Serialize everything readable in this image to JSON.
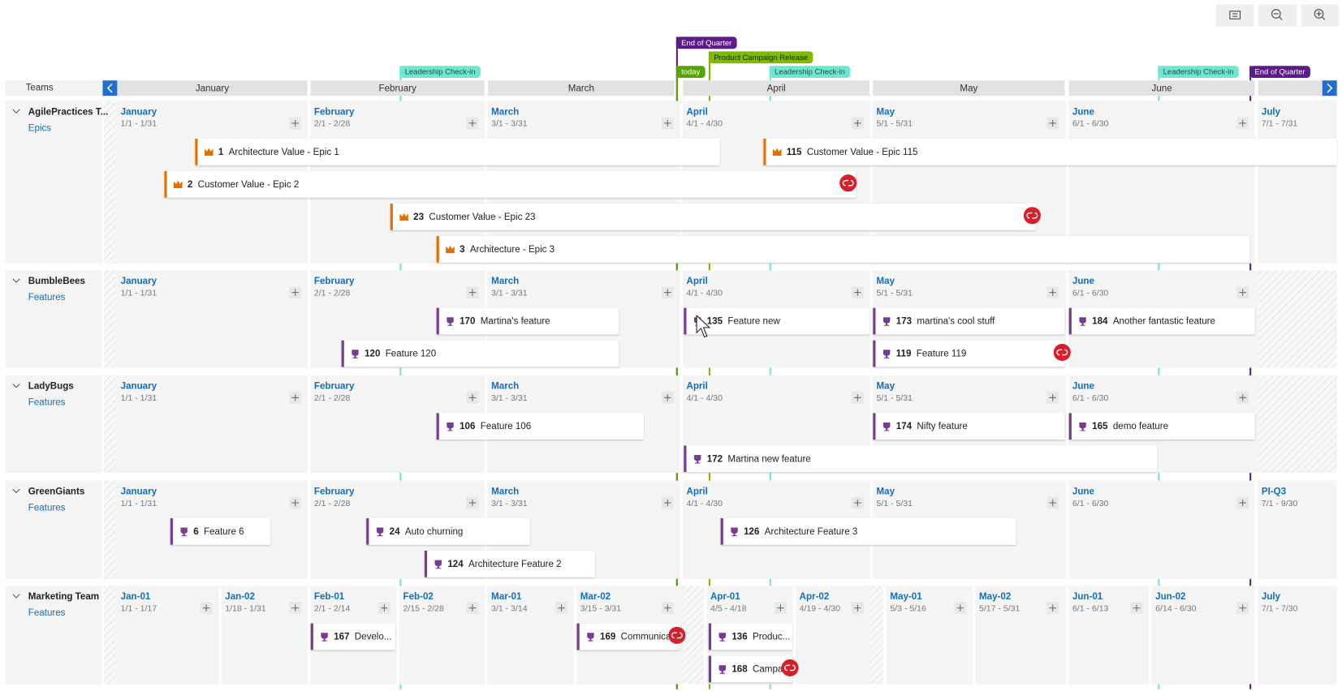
{
  "header": {
    "teams_label": "Teams",
    "months": [
      "January",
      "February",
      "March",
      "April",
      "May",
      "June"
    ]
  },
  "markers": [
    {
      "label": "End of Quarter"
    },
    {
      "label": "Product Campaign Release"
    },
    {
      "label": "today"
    },
    {
      "label": "Leadership Check-in"
    },
    {
      "label": "Leadership Check-in"
    },
    {
      "label": "Leadership Check-in"
    },
    {
      "label": "End of Quarter"
    }
  ],
  "teams": [
    {
      "name": "AgilePractices T...",
      "level": "Epics",
      "iterations": [
        {
          "name": "January",
          "dates": "1/1 - 1/31"
        },
        {
          "name": "February",
          "dates": "2/1 - 2/28"
        },
        {
          "name": "March",
          "dates": "3/1 - 3/31"
        },
        {
          "name": "April",
          "dates": "4/1 - 4/30"
        },
        {
          "name": "May",
          "dates": "5/1 - 5/31"
        },
        {
          "name": "June",
          "dates": "6/1 - 6/30"
        },
        {
          "name": "July",
          "dates": "7/1 - 7/31"
        }
      ],
      "items": [
        {
          "id": "1",
          "title": "Architecture Value - Epic 1"
        },
        {
          "id": "115",
          "title": "Customer Value - Epic 115"
        },
        {
          "id": "2",
          "title": "Customer Value - Epic 2"
        },
        {
          "id": "23",
          "title": "Customer Value - Epic 23"
        },
        {
          "id": "3",
          "title": "Architecture - Epic 3"
        }
      ]
    },
    {
      "name": "BumbleBees",
      "level": "Features",
      "iterations": [
        {
          "name": "January",
          "dates": "1/1 - 1/31"
        },
        {
          "name": "February",
          "dates": "2/1 - 2/28"
        },
        {
          "name": "March",
          "dates": "3/1 - 3/31"
        },
        {
          "name": "April",
          "dates": "4/1 - 4/30"
        },
        {
          "name": "May",
          "dates": "5/1 - 5/31"
        },
        {
          "name": "June",
          "dates": "6/1 - 6/30"
        }
      ],
      "items": [
        {
          "id": "170",
          "title": "Martina's feature"
        },
        {
          "id": "135",
          "title": "Feature new"
        },
        {
          "id": "173",
          "title": "martina's cool stuff"
        },
        {
          "id": "184",
          "title": "Another fantastic feature"
        },
        {
          "id": "120",
          "title": "Feature 120"
        },
        {
          "id": "119",
          "title": "Feature 119"
        }
      ]
    },
    {
      "name": "LadyBugs",
      "level": "Features",
      "iterations": [
        {
          "name": "January",
          "dates": "1/1 - 1/31"
        },
        {
          "name": "February",
          "dates": "2/1 - 2/28"
        },
        {
          "name": "March",
          "dates": "3/1 - 3/31"
        },
        {
          "name": "April",
          "dates": "4/1 - 4/30"
        },
        {
          "name": "May",
          "dates": "5/1 - 5/31"
        },
        {
          "name": "June",
          "dates": "6/1 - 6/30"
        }
      ],
      "items": [
        {
          "id": "106",
          "title": "Feature 106"
        },
        {
          "id": "174",
          "title": "Nifty feature"
        },
        {
          "id": "165",
          "title": "demo feature"
        },
        {
          "id": "172",
          "title": "Martina new feature"
        }
      ]
    },
    {
      "name": "GreenGiants",
      "level": "Features",
      "iterations": [
        {
          "name": "January",
          "dates": "1/1 - 1/31"
        },
        {
          "name": "February",
          "dates": "2/1 - 2/28"
        },
        {
          "name": "March",
          "dates": "3/1 - 3/31"
        },
        {
          "name": "April",
          "dates": "4/1 - 4/30"
        },
        {
          "name": "May",
          "dates": "5/1 - 5/31"
        },
        {
          "name": "June",
          "dates": "6/1 - 6/30"
        },
        {
          "name": "PI-Q3",
          "dates": "7/1 - 9/30"
        }
      ],
      "items": [
        {
          "id": "6",
          "title": "Feature 6"
        },
        {
          "id": "24",
          "title": "Auto churning"
        },
        {
          "id": "126",
          "title": "Architecture Feature 3"
        },
        {
          "id": "124",
          "title": "Architecture Feature 2"
        }
      ]
    },
    {
      "name": "Marketing Team",
      "level": "Features",
      "iterations": [
        {
          "name": "Jan-01",
          "dates": "1/1 - 1/17"
        },
        {
          "name": "Jan-02",
          "dates": "1/18 - 1/31"
        },
        {
          "name": "Feb-01",
          "dates": "2/1 - 2/14"
        },
        {
          "name": "Feb-02",
          "dates": "2/15 - 2/28"
        },
        {
          "name": "Mar-01",
          "dates": "3/1 - 3/14"
        },
        {
          "name": "Mar-02",
          "dates": "3/15 - 3/31"
        },
        {
          "name": "Apr-01",
          "dates": "4/5 - 4/18"
        },
        {
          "name": "Apr-02",
          "dates": "4/19 - 4/30"
        },
        {
          "name": "May-01",
          "dates": "5/3 - 5/16"
        },
        {
          "name": "May-02",
          "dates": "5/17 - 5/31"
        },
        {
          "name": "Jun-01",
          "dates": "6/1 - 6/13"
        },
        {
          "name": "Jun-02",
          "dates": "6/14 - 6/30"
        },
        {
          "name": "July",
          "dates": "7/1 - 7/30"
        }
      ],
      "items": [
        {
          "id": "167",
          "title": "Develo..."
        },
        {
          "id": "169",
          "title": "Communica..."
        },
        {
          "id": "136",
          "title": "Produc..."
        },
        {
          "id": "168",
          "title": "Campa..."
        }
      ]
    }
  ]
}
